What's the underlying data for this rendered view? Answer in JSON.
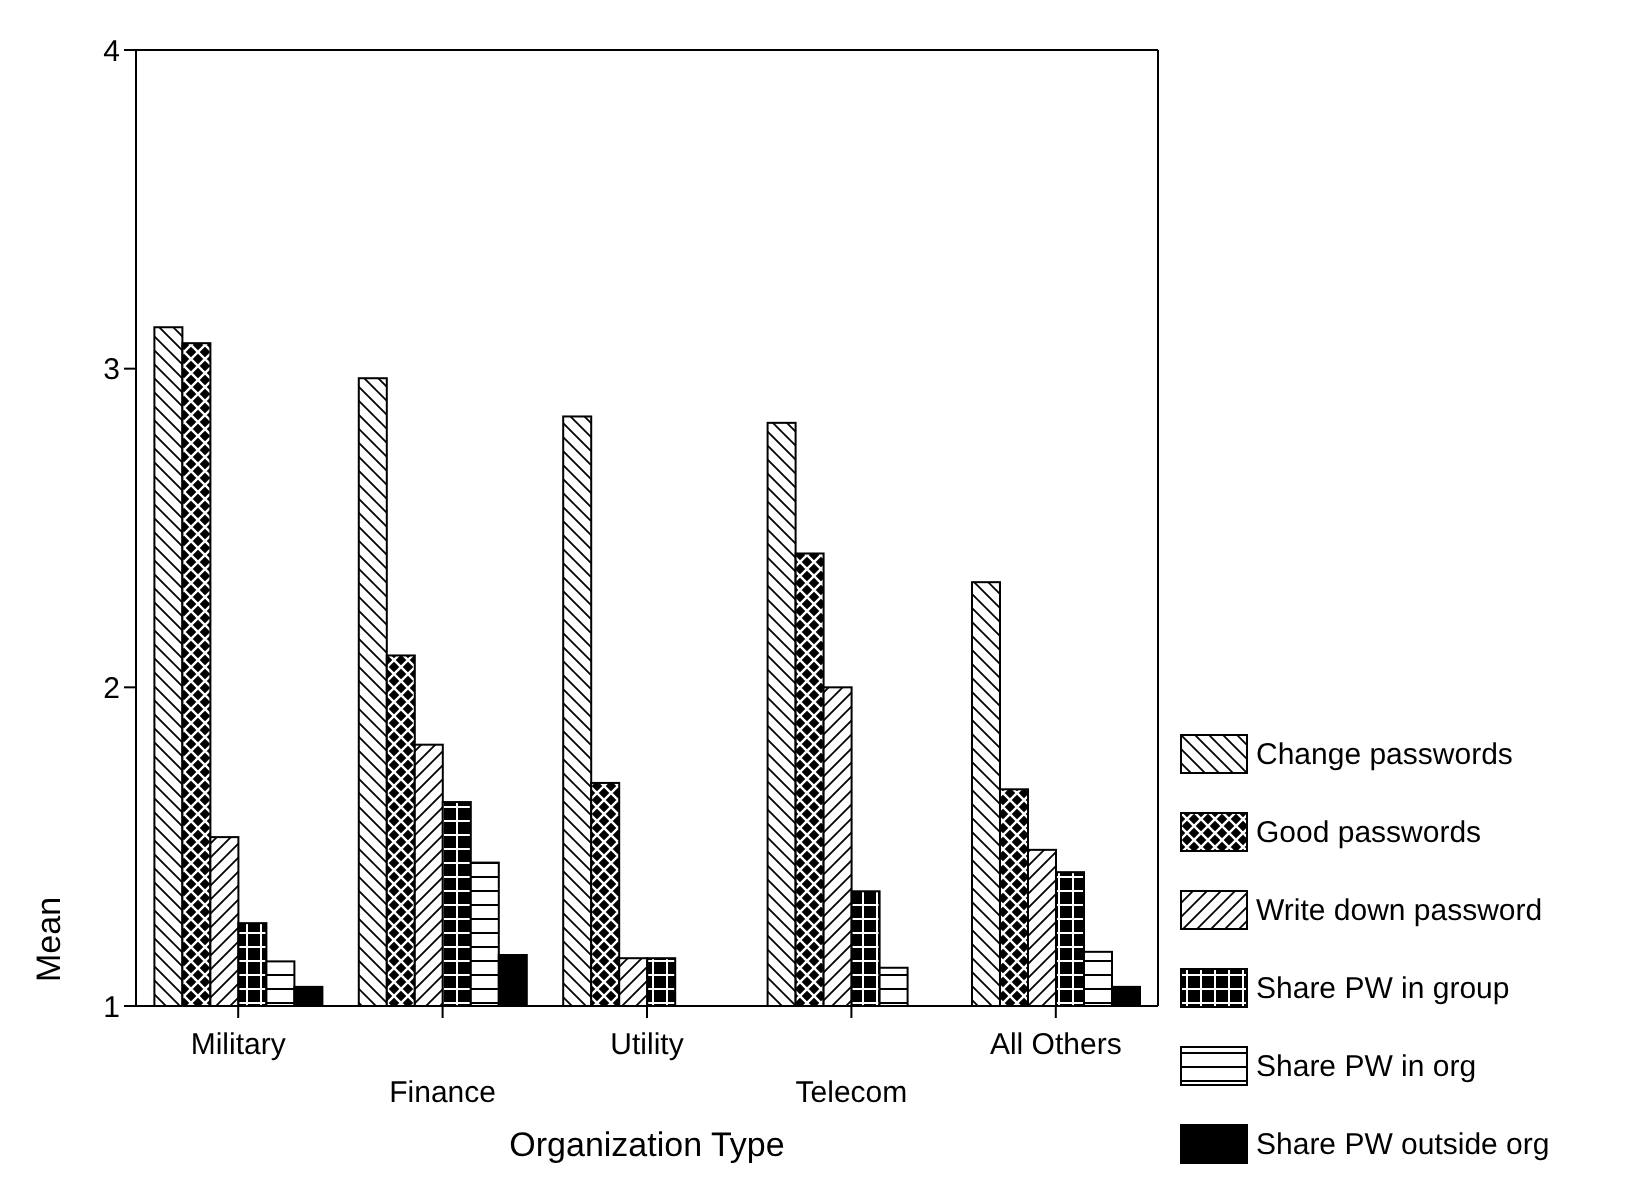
{
  "chart_data": {
    "type": "bar",
    "xlabel": "Organization Type",
    "ylabel": "Mean",
    "categories": [
      "Military",
      "Finance",
      "Utility",
      "Telecom",
      "All Others"
    ],
    "series": [
      {
        "name": "Change passwords",
        "color": "#ffffff",
        "values": [
          3.13,
          2.97,
          2.85,
          2.83,
          2.33
        ]
      },
      {
        "name": "Good passwords",
        "color": "#000000",
        "values": [
          3.08,
          2.1,
          1.7,
          2.42,
          1.68
        ]
      },
      {
        "name": "Write down password",
        "color": "#ffffff",
        "values": [
          1.53,
          1.82,
          1.15,
          2.0,
          1.49
        ]
      },
      {
        "name": "Share PW in group",
        "color": "#000000",
        "values": [
          1.26,
          1.64,
          1.15,
          1.36,
          1.42
        ]
      },
      {
        "name": "Share PW in org",
        "color": "#ffffff",
        "values": [
          1.14,
          1.45,
          null,
          1.12,
          1.17
        ]
      },
      {
        "name": "Share PW outside org",
        "color": "#000000",
        "values": [
          1.06,
          1.16,
          null,
          null,
          1.06
        ]
      }
    ],
    "ylim": [
      1,
      4
    ],
    "yticks": [
      1,
      2,
      3,
      4
    ],
    "legend": "right"
  }
}
